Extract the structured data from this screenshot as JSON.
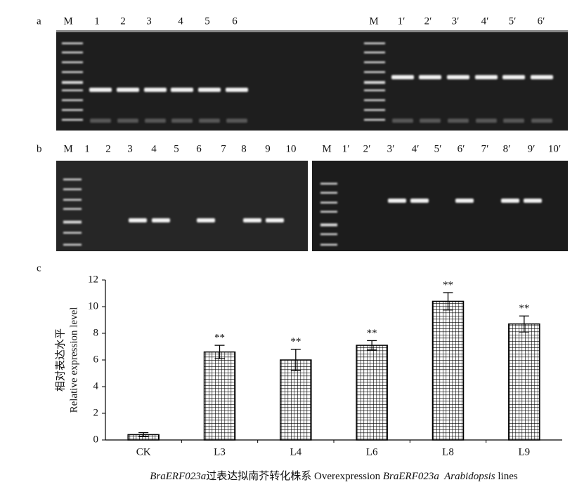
{
  "panels": {
    "a": {
      "label": "a",
      "left_lanes": [
        "M",
        "1",
        "2",
        "3",
        "4",
        "5",
        "6"
      ],
      "right_lanes": [
        "M",
        "1′",
        "2′",
        "3′",
        "4′",
        "5′",
        "6′"
      ]
    },
    "b": {
      "label": "b",
      "left_lanes": [
        "M",
        "1",
        "2",
        "3",
        "4",
        "5",
        "6",
        "7",
        "8",
        "9",
        "10"
      ],
      "right_lanes": [
        "M",
        "1′",
        "2′",
        "3′",
        "4′",
        "5′",
        "6′",
        "7′",
        "8′",
        "9′",
        "10′"
      ]
    },
    "c": {
      "label": "c"
    }
  },
  "chart_data": {
    "type": "bar",
    "ylabel": [
      "相对表达水平",
      "Relative expression level"
    ],
    "xlabel": [
      {
        "text": "BraERF023a",
        "italic": true
      },
      {
        "text": "过表达拟南芥转化株系 Overexpression ",
        "italic": false
      },
      {
        "text": "BraERF023a",
        "italic": true
      },
      {
        "text": "  Arabidopsis",
        "italic": true
      },
      {
        "text": " lines",
        "italic": false
      }
    ],
    "categories": [
      "CK",
      "L3",
      "L4",
      "L6",
      "L8",
      "L9"
    ],
    "values": [
      0.4,
      6.6,
      6.0,
      7.1,
      10.4,
      8.7
    ],
    "errors": [
      0.15,
      0.5,
      0.8,
      0.35,
      0.65,
      0.6
    ],
    "annotations": [
      null,
      "**",
      "**",
      "**",
      "**",
      "**"
    ],
    "ylim": [
      0,
      12
    ],
    "yticks": [
      0,
      2,
      4,
      6,
      8,
      10,
      12
    ],
    "color": "#000000"
  }
}
